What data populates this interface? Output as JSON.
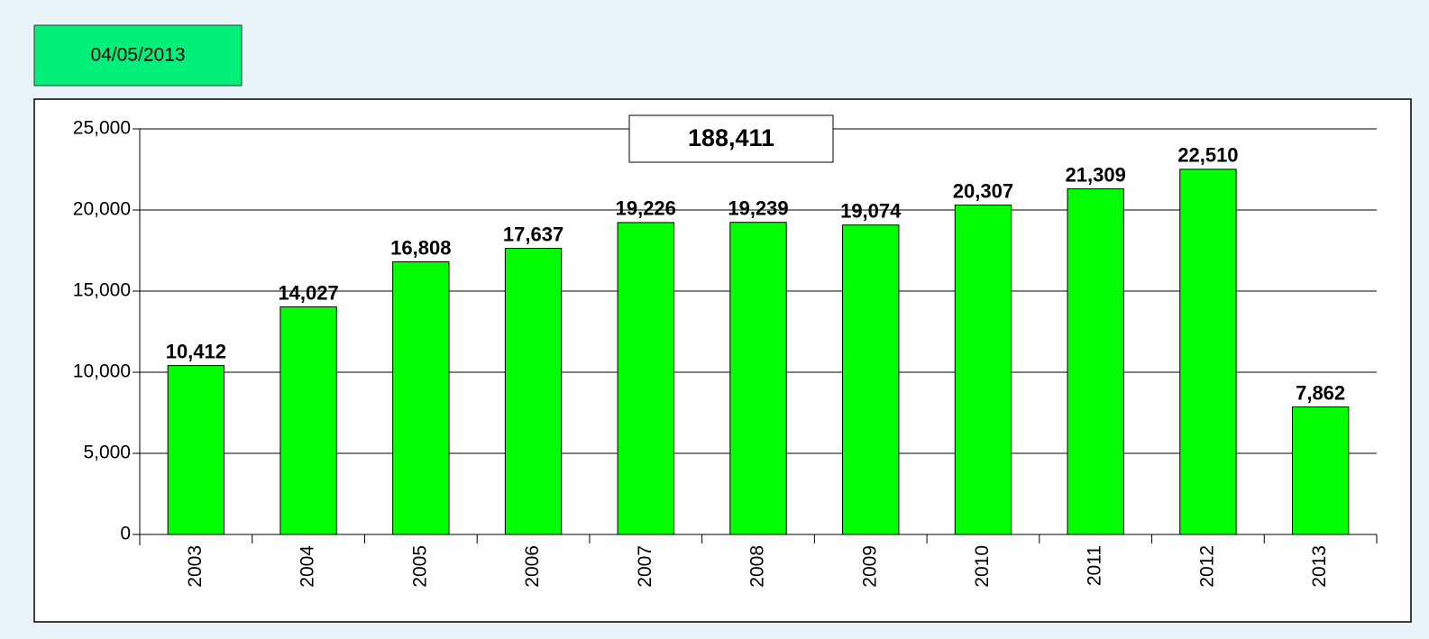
{
  "date": "04/05/2013",
  "chart_data": {
    "type": "bar",
    "annotation": "188,411",
    "categories": [
      "2003",
      "2004",
      "2005",
      "2006",
      "2007",
      "2008",
      "2009",
      "2010",
      "2011",
      "2012",
      "2013"
    ],
    "values": [
      10412,
      14027,
      16808,
      17637,
      19226,
      19239,
      19074,
      20307,
      21309,
      22510,
      7862
    ],
    "value_labels": [
      "10,412",
      "14,027",
      "16,808",
      "17,637",
      "19,226",
      "19,239",
      "19,074",
      "20,307",
      "21,309",
      "22,510",
      "7,862"
    ],
    "color": "#00ff00",
    "ylim": [
      0,
      25000
    ],
    "yticks": [
      0,
      {
        "value": 5000,
        "label": "5,000"
      },
      {
        "value": 10000,
        "label": "10,000"
      },
      {
        "value": 15000,
        "label": "15,000"
      },
      {
        "value": 20000,
        "label": "20,000"
      },
      {
        "value": 25000,
        "label": "25,000"
      }
    ],
    "grid": true
  }
}
